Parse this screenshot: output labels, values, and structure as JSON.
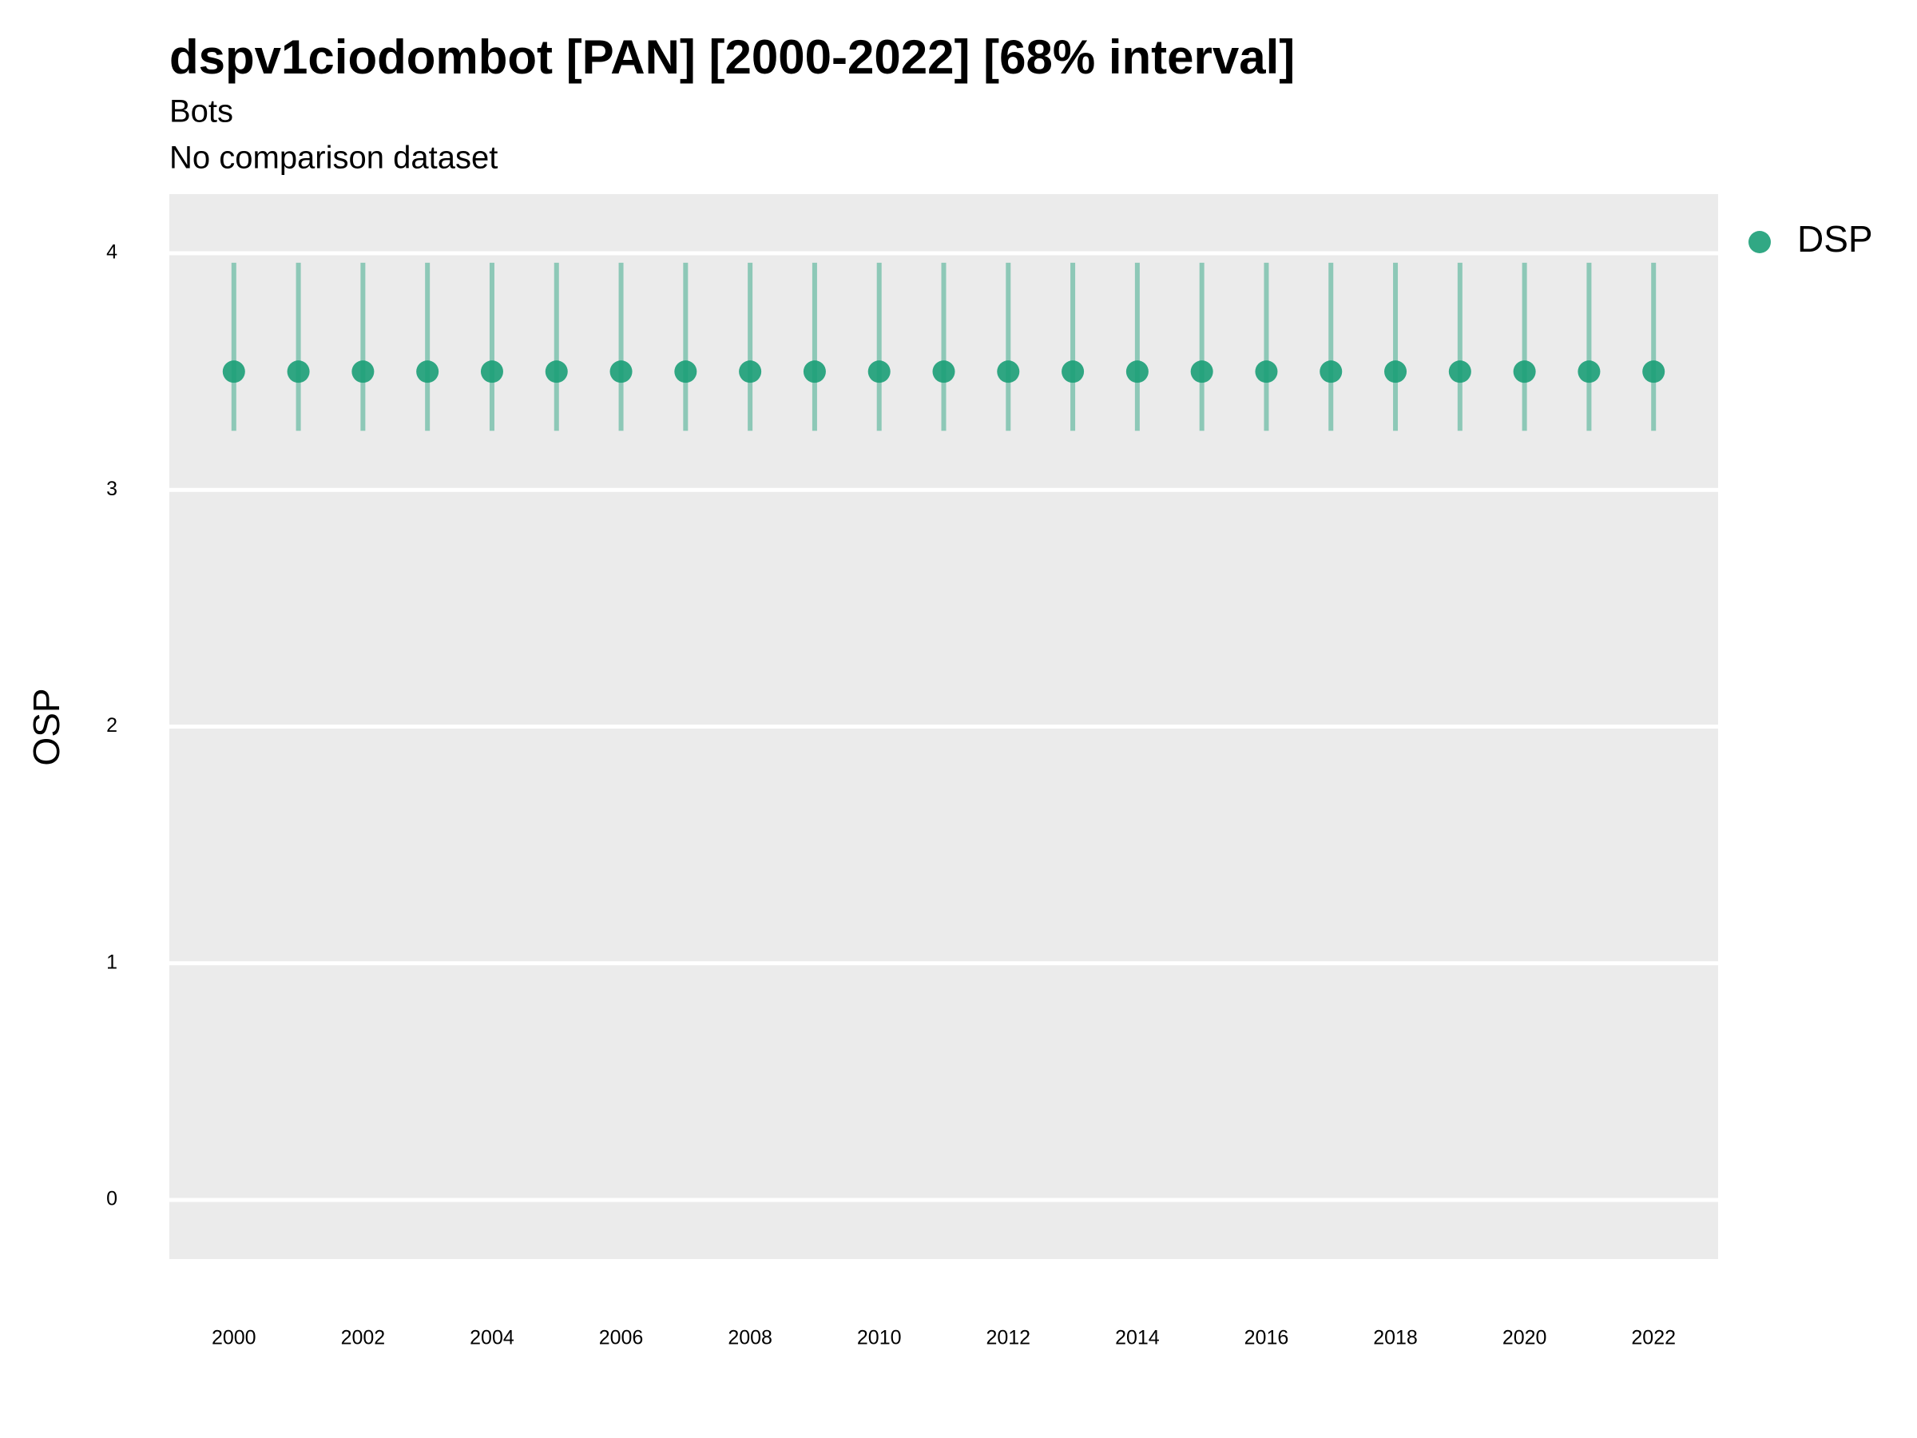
{
  "chart_data": {
    "type": "pointrange",
    "title": "dspv1ciodombot [PAN] [2000-2022] [68% interval]",
    "subtitle": "Bots",
    "caption": "No comparison dataset",
    "y_label": "OSP",
    "x": [
      2000,
      2001,
      2002,
      2003,
      2004,
      2005,
      2006,
      2007,
      2008,
      2009,
      2010,
      2011,
      2012,
      2013,
      2014,
      2015,
      2016,
      2017,
      2018,
      2019,
      2020,
      2021,
      2022
    ],
    "series": [
      {
        "name": "DSP",
        "color": "#1b9e77",
        "values": [
          3.5,
          3.5,
          3.5,
          3.5,
          3.5,
          3.5,
          3.5,
          3.5,
          3.5,
          3.5,
          3.5,
          3.5,
          3.5,
          3.5,
          3.5,
          3.5,
          3.5,
          3.5,
          3.5,
          3.5,
          3.5,
          3.5,
          3.5
        ],
        "lower": [
          3.25,
          3.25,
          3.25,
          3.25,
          3.25,
          3.25,
          3.25,
          3.25,
          3.25,
          3.25,
          3.25,
          3.25,
          3.25,
          3.25,
          3.25,
          3.25,
          3.25,
          3.25,
          3.25,
          3.25,
          3.25,
          3.25,
          3.25
        ],
        "upper": [
          3.96,
          3.96,
          3.96,
          3.96,
          3.96,
          3.96,
          3.96,
          3.96,
          3.96,
          3.96,
          3.96,
          3.96,
          3.96,
          3.96,
          3.96,
          3.96,
          3.96,
          3.96,
          3.96,
          3.96,
          3.96,
          3.96,
          3.96
        ]
      }
    ],
    "xlim": [
      1999,
      2023
    ],
    "xticks": [
      2000,
      2002,
      2004,
      2006,
      2008,
      2010,
      2012,
      2014,
      2016,
      2018,
      2020,
      2022
    ],
    "ylim": [
      -0.25,
      4.25
    ],
    "yticks": [
      0,
      1,
      2,
      3,
      4
    ],
    "grid": true,
    "legend": "right"
  }
}
